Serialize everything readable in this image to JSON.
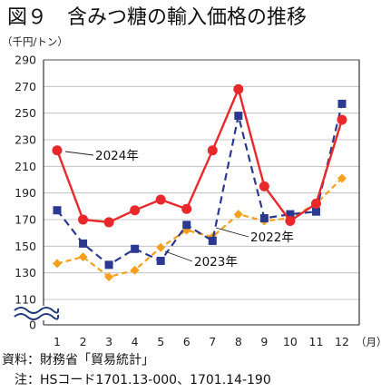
{
  "chart_data": {
    "type": "line",
    "title": "図９　含みつ糖の輸入価格の推移",
    "ylabel": "（千円/トン）",
    "xlabel_unit": "（月）",
    "categories": [
      "1",
      "2",
      "3",
      "4",
      "5",
      "6",
      "7",
      "8",
      "9",
      "10",
      "11",
      "12"
    ],
    "yticks": [
      "290",
      "270",
      "250",
      "230",
      "210",
      "190",
      "170",
      "150",
      "130",
      "110",
      "0"
    ],
    "ylim": [
      100,
      290
    ],
    "axis_break": true,
    "grid": "horizontal",
    "series": [
      {
        "name": "2024年",
        "color": "#e8282b",
        "marker": "circle",
        "line": "solid",
        "values": [
          222,
          170,
          168,
          177,
          185,
          178,
          222,
          268,
          195,
          169,
          182,
          245
        ]
      },
      {
        "name": "2023年",
        "color": "#2b3990",
        "marker": "square",
        "line": "dashed",
        "values": [
          177,
          152,
          136,
          148,
          139,
          166,
          154,
          248,
          171,
          174,
          176,
          257
        ]
      },
      {
        "name": "2022年",
        "color": "#f5a01a",
        "marker": "diamond",
        "line": "dashed",
        "values": [
          137,
          142,
          127,
          132,
          149,
          162,
          157,
          174,
          169,
          171,
          182,
          201
        ]
      }
    ]
  },
  "notes": {
    "source": "資料：財務省「貿易統計」",
    "note": "　注：HSコード1701.13-000、1701.14-190"
  }
}
